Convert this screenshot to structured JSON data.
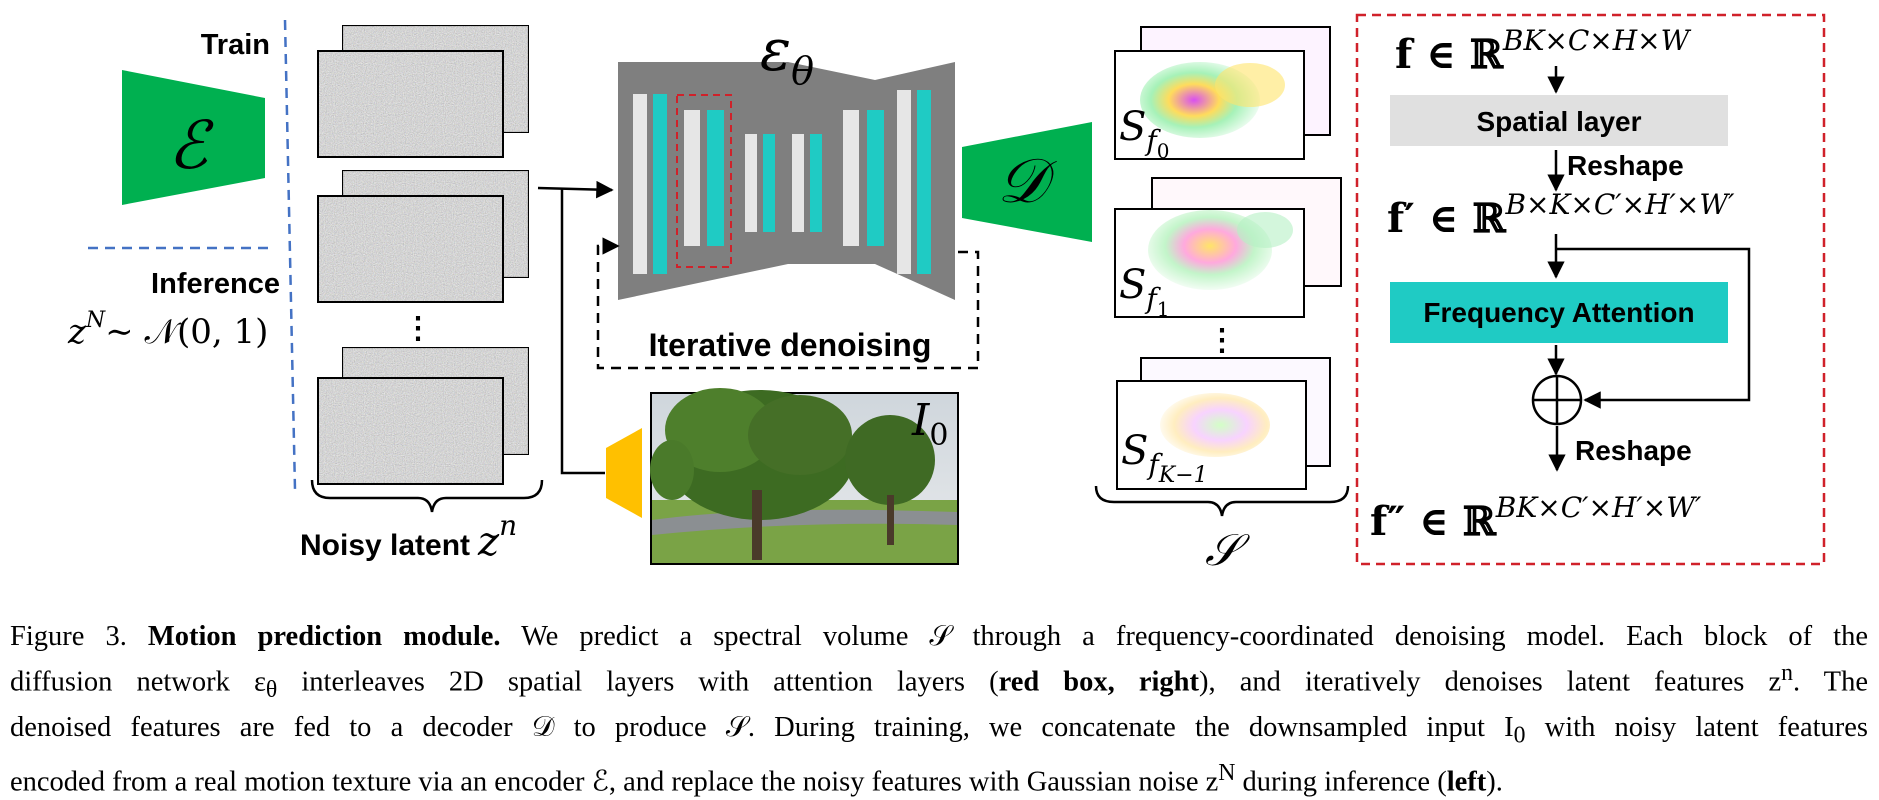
{
  "left": {
    "train_label": "Train",
    "inference_label": "Inference",
    "inference_prior": "z",
    "inference_prior_sup": "N",
    "inference_prior_rest": "∼ 𝒩(0, 1)",
    "encoder_symbol": "ℰ"
  },
  "latents": {
    "label": "Noisy latent",
    "symbol": "z",
    "symbol_sup": "n",
    "ellipsis": "⋮"
  },
  "unet": {
    "symbol": "ε",
    "symbol_sub": "θ",
    "loop_label": "Iterative denoising"
  },
  "input_image": {
    "symbol": "I",
    "symbol_sub": "0"
  },
  "decoder": {
    "symbol": "𝒟"
  },
  "spectral": {
    "frames": [
      {
        "base": "S",
        "sub": "f",
        "subsub": "0"
      },
      {
        "base": "S",
        "sub": "f",
        "subsub": "1"
      },
      {
        "base": "S",
        "sub": "f",
        "subsub": "K−1"
      }
    ],
    "ellipsis": "⋮",
    "volume_symbol": "𝒮"
  },
  "attention_block": {
    "f_in": "f ∈ ℝ",
    "f_in_sup": "BK×C×H×W",
    "spatial_layer": "Spatial layer",
    "reshape_1": "Reshape",
    "f_mid": "f′ ∈ ℝ",
    "f_mid_sup": "B×K×C′×H′×W′",
    "frequency_attention": "Frequency Attention",
    "reshape_2": "Reshape",
    "f_out": "f″ ∈ ℝ",
    "f_out_sup": "BK×C′×H′×W′"
  },
  "colors": {
    "encoder_green": "#00b050",
    "unet_gray": "#7f7f7f",
    "teal": "#1fcbc4",
    "light_bar": "#e6e6e6",
    "red_dashed": "#d0212a",
    "blue_dashed": "#4472c4",
    "yellow_encoder": "#ffc000",
    "spatial_gray": "#e0e0e0"
  },
  "caption": {
    "fig_label": "Figure 3.",
    "title": "Motion prediction module.",
    "line1_rest": " We predict a spectral volume 𝒮 through a frequency-coordinated denoising model. Each block of the",
    "line2a": "diffusion network ε",
    "line2_sub": "θ",
    "line2b": " interleaves 2D spatial layers with attention layers (",
    "line2_bold": "red box, right",
    "line2c": "), and iteratively denoises latent features z",
    "line2_sup": "n",
    "line2d": ". The",
    "line3a": "denoised features are fed to a decoder 𝒟 to produce 𝒮. During training, we concatenate the downsampled input I",
    "line3_sub": "0",
    "line3b": " with noisy latent features",
    "line4a": "encoded from a real motion texture via an encoder ℰ, and replace the noisy features with Gaussian noise z",
    "line4_sup": "N",
    "line4b": " during inference (",
    "line4_bold": "left",
    "line4c": ")."
  }
}
